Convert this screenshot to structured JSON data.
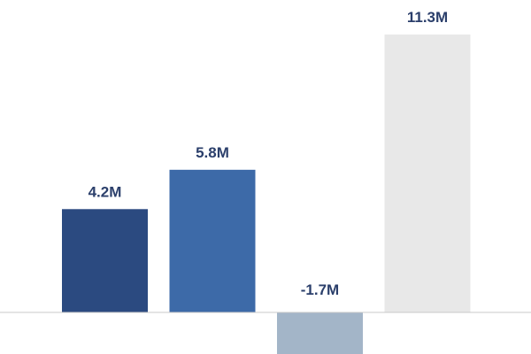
{
  "chart_data": {
    "type": "bar",
    "categories": [
      null,
      null,
      null,
      null
    ],
    "values": [
      4.2,
      5.8,
      -1.7,
      11.3
    ],
    "value_labels": [
      "4.2M",
      "5.8M",
      "-1.7M",
      "11.3M"
    ],
    "colors": [
      "#2b4a80",
      "#3d6aa8",
      "#a3b5c8",
      "#e8e8e8"
    ]
  }
}
